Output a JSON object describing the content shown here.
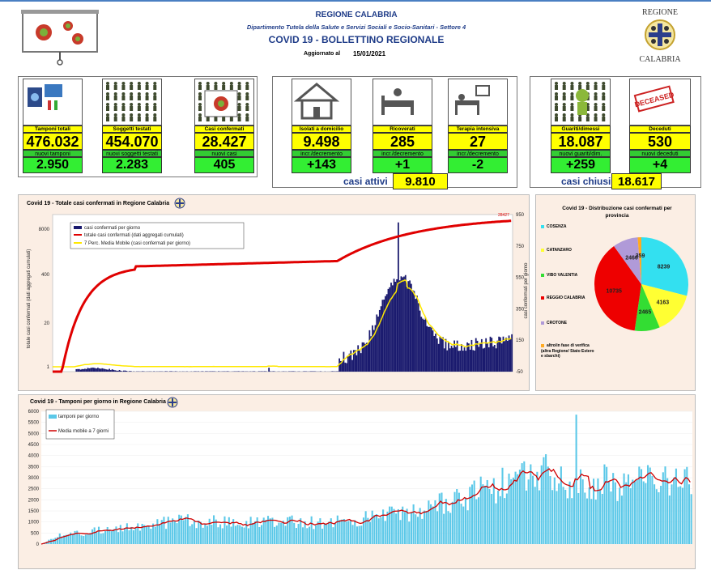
{
  "header": {
    "region": "REGIONE CALABRIA",
    "department": "Dipartimento Tutela della Salute e Servizi Sociali e Socio-Sanitari - Settore 4",
    "title": "COVID 19 - BOLLETTINO REGIONALE",
    "updated_label": "Aggiornato al",
    "updated_date": "15/01/2021",
    "logo_top": "REGIONE",
    "logo_bottom": "CALABRIA"
  },
  "cards": [
    {
      "label": "Tamponi totali",
      "value": "476.032",
      "sub_label": "nuovi tamponi",
      "sub_value": "2.950"
    },
    {
      "label": "Soggetti testati",
      "value": "454.070",
      "sub_label": "nuovi soggetti testati",
      "sub_value": "2.283"
    },
    {
      "label": "Casi confermati",
      "value": "28.427",
      "sub_label": "nuovi casi",
      "sub_value": "405"
    },
    {
      "label": "Isolati a domicilio",
      "value": "9.498",
      "sub_label": "incr./decremento",
      "sub_value": "+143"
    },
    {
      "label": "Ricoverati",
      "value": "285",
      "sub_label": "incr./decremento",
      "sub_value": "+1"
    },
    {
      "label": "Terapia intensiva",
      "value": "27",
      "sub_label": "incr./decremento",
      "sub_value": "-2"
    },
    {
      "label": "Guariti/dimessi",
      "value": "18.087",
      "sub_label": "nuovi guariti/dim.",
      "sub_value": "+259"
    },
    {
      "label": "Deceduti",
      "value": "530",
      "sub_label": "nuovi deceduti",
      "sub_value": "+4"
    }
  ],
  "active": {
    "label": "casi attivi",
    "value": "9.810"
  },
  "closed": {
    "label": "casi chiusi",
    "value": "18.617"
  },
  "deceased_stamp": "DECEASED",
  "chart_data": [
    {
      "type": "bar",
      "title": "Covid 19 - Totale casi confermati in Regione Calabria",
      "last_label": "28427",
      "series": [
        {
          "name": "casi confermati per giorno",
          "color": "#1a1a6e"
        },
        {
          "name": "totale casi confermati (dati aggregati cumulati)",
          "color": "#e00000"
        },
        {
          "name": "7 Perc. Media Mobile (casi confermati per giorno)",
          "color": "#ffe800"
        }
      ],
      "left_ticks": [
        "8000",
        "400",
        "20",
        "1"
      ],
      "right_ticks": [
        "950",
        "750",
        "550",
        "350",
        "150",
        "-50"
      ],
      "ylabel_left": "totale casi confermati (dati aggregati cumulati)",
      "ylabel_right": "casi confermati per giorno"
    },
    {
      "type": "pie",
      "title": "Covid 19 - Distribuzione casi confermati per provincia",
      "categories": [
        "COSENZA",
        "CATANZARO",
        "VIBO VALENTIA",
        "REGGIO CALABRIA",
        "CROTONE",
        "altro/in fase di verifica (altra Regione/ Stato Estero e sbarchi)"
      ],
      "values": [
        8239,
        4163,
        2465,
        10735,
        2466,
        359
      ],
      "colors": [
        "#33e0f0",
        "#ffff33",
        "#33dd33",
        "#ee0000",
        "#b09ad8",
        "#ffaa22"
      ]
    },
    {
      "type": "bar",
      "title": "Covid 19 - Tamponi per giorno in Regione Calabria",
      "series": [
        {
          "name": "tamponi per giorno",
          "color": "#5bc8e8"
        },
        {
          "name": "Media mobile a 7 giorni",
          "color": "#d00000"
        }
      ],
      "y_ticks": [
        "6000",
        "5500",
        "5000",
        "4500",
        "4000",
        "3500",
        "3000",
        "2500",
        "2000",
        "1500",
        "1000",
        "500",
        "0"
      ],
      "ylim": [
        0,
        6000
      ]
    }
  ]
}
